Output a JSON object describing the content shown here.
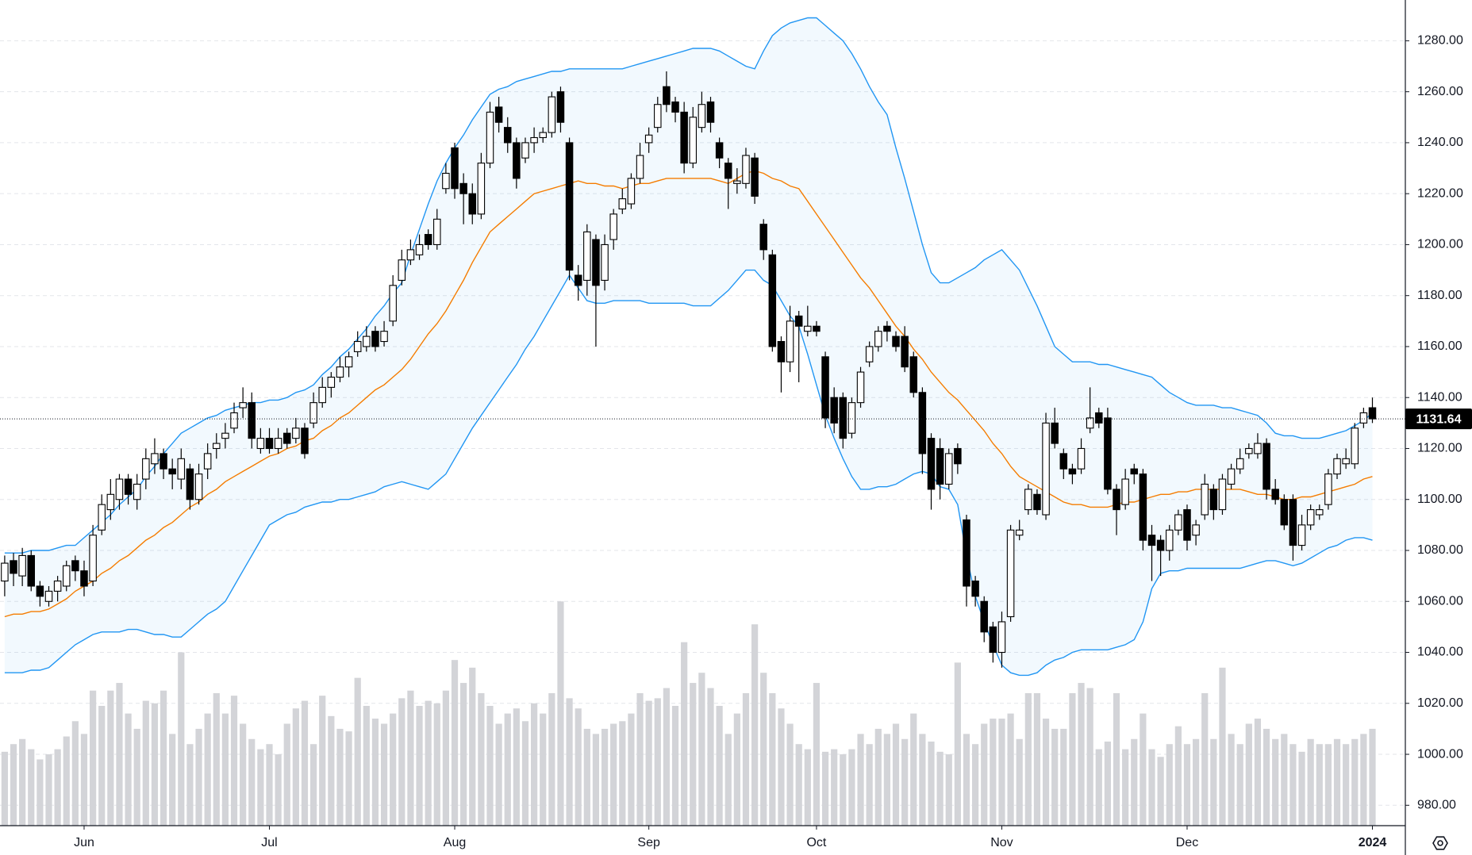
{
  "chart_data": {
    "type": "candlestick",
    "categories": [
      null,
      null,
      null,
      null,
      null,
      null,
      null,
      null,
      null,
      "Jun",
      null,
      null,
      null,
      null,
      null,
      null,
      null,
      null,
      null,
      null,
      null,
      null,
      null,
      null,
      null,
      null,
      null,
      null,
      null,
      null,
      "Jul",
      null,
      null,
      null,
      null,
      null,
      null,
      null,
      null,
      null,
      null,
      null,
      null,
      null,
      null,
      null,
      null,
      null,
      null,
      null,
      null,
      "Aug",
      null,
      null,
      null,
      null,
      null,
      null,
      null,
      null,
      null,
      null,
      null,
      null,
      null,
      null,
      null,
      null,
      null,
      null,
      null,
      null,
      null,
      "Sep",
      null,
      null,
      null,
      null,
      null,
      null,
      null,
      null,
      null,
      null,
      null,
      null,
      null,
      null,
      null,
      null,
      null,
      null,
      "Oct",
      null,
      null,
      null,
      null,
      null,
      null,
      null,
      null,
      null,
      null,
      null,
      null,
      null,
      null,
      null,
      null,
      null,
      null,
      null,
      null,
      "Nov",
      null,
      null,
      null,
      null,
      null,
      null,
      null,
      null,
      null,
      null,
      null,
      null,
      null,
      null,
      null,
      null,
      null,
      null,
      null,
      null,
      "Dec",
      null,
      null,
      null,
      null,
      null,
      null,
      null,
      null,
      null,
      null,
      null,
      null,
      null,
      null,
      null,
      null,
      null,
      null,
      null,
      null,
      "2024"
    ],
    "open": [
      1068,
      1076,
      1070,
      1078,
      1066,
      1060,
      1064,
      1066,
      1076,
      1072,
      1068,
      1088,
      1096,
      1100,
      1108,
      1100,
      1108,
      1114,
      1118,
      1112,
      1108,
      1112,
      1100,
      1112,
      1120,
      1124,
      1128,
      1136,
      1138,
      1120,
      1124,
      1120,
      1126,
      1124,
      1128,
      1130,
      1138,
      1144,
      1148,
      1152,
      1158,
      1160,
      1166,
      1162,
      1170,
      1186,
      1194,
      1196,
      1204,
      1200,
      1222,
      1238,
      1224,
      1220,
      1212,
      1232,
      1254,
      1246,
      1240,
      1234,
      1240,
      1242,
      1244,
      1260,
      1240,
      1188,
      1186,
      1202,
      1186,
      1202,
      1214,
      1216,
      1226,
      1240,
      1246,
      1262,
      1256,
      1252,
      1232,
      1246,
      1256,
      1240,
      1232,
      1224,
      1224,
      1234,
      1208,
      1196,
      1162,
      1154,
      1172,
      1166,
      1168,
      1156,
      1140,
      1140,
      1126,
      1138,
      1154,
      1160,
      1168,
      1164,
      1164,
      1156,
      1142,
      1124,
      1120,
      1106,
      1120,
      1092,
      1068,
      1060,
      1050,
      1040,
      1054,
      1086,
      1096,
      1102,
      1094,
      1130,
      1118,
      1112,
      1112,
      1128,
      1134,
      1132,
      1104,
      1098,
      1112,
      1110,
      1086,
      1084,
      1080,
      1088,
      1096,
      1086,
      1094,
      1104,
      1096,
      1106,
      1112,
      1118,
      1118,
      1122,
      1104,
      1100,
      1100,
      1082,
      1090,
      1094,
      1098,
      1110,
      1114,
      1114,
      1130,
      1136
    ],
    "high": [
      1078,
      1079,
      1081,
      1080,
      1068,
      1066,
      1070,
      1076,
      1078,
      1076,
      1090,
      1102,
      1108,
      1110,
      1110,
      1110,
      1120,
      1124,
      1120,
      1116,
      1120,
      1114,
      1114,
      1122,
      1126,
      1130,
      1138,
      1144,
      1142,
      1128,
      1128,
      1128,
      1128,
      1132,
      1130,
      1142,
      1148,
      1150,
      1156,
      1158,
      1166,
      1168,
      1168,
      1170,
      1188,
      1198,
      1202,
      1204,
      1206,
      1214,
      1232,
      1240,
      1228,
      1224,
      1236,
      1256,
      1258,
      1250,
      1242,
      1242,
      1246,
      1246,
      1260,
      1262,
      1242,
      1192,
      1208,
      1204,
      1204,
      1214,
      1222,
      1228,
      1240,
      1246,
      1258,
      1268,
      1258,
      1256,
      1254,
      1260,
      1258,
      1242,
      1234,
      1230,
      1238,
      1236,
      1210,
      1198,
      1164,
      1176,
      1174,
      1176,
      1170,
      1158,
      1144,
      1142,
      1140,
      1152,
      1162,
      1168,
      1170,
      1166,
      1168,
      1158,
      1144,
      1126,
      1124,
      1120,
      1122,
      1094,
      1070,
      1062,
      1052,
      1056,
      1090,
      1092,
      1106,
      1104,
      1134,
      1136,
      1120,
      1114,
      1124,
      1144,
      1136,
      1136,
      1106,
      1112,
      1114,
      1112,
      1090,
      1086,
      1090,
      1096,
      1098,
      1092,
      1110,
      1106,
      1110,
      1114,
      1120,
      1122,
      1126,
      1124,
      1108,
      1102,
      1102,
      1094,
      1098,
      1098,
      1112,
      1118,
      1120,
      1130,
      1136,
      1140
    ],
    "low": [
      1062,
      1066,
      1066,
      1064,
      1058,
      1058,
      1060,
      1064,
      1068,
      1062,
      1066,
      1086,
      1092,
      1096,
      1098,
      1096,
      1104,
      1110,
      1108,
      1104,
      1104,
      1096,
      1098,
      1108,
      1116,
      1120,
      1126,
      1132,
      1120,
      1118,
      1118,
      1118,
      1120,
      1122,
      1116,
      1128,
      1136,
      1140,
      1146,
      1148,
      1156,
      1158,
      1158,
      1160,
      1168,
      1184,
      1192,
      1194,
      1198,
      1198,
      1220,
      1218,
      1208,
      1208,
      1210,
      1230,
      1244,
      1236,
      1222,
      1232,
      1236,
      1240,
      1242,
      1244,
      1186,
      1178,
      1180,
      1160,
      1182,
      1198,
      1212,
      1214,
      1224,
      1236,
      1244,
      1252,
      1248,
      1228,
      1230,
      1244,
      1244,
      1230,
      1214,
      1220,
      1222,
      1216,
      1194,
      1158,
      1142,
      1150,
      1146,
      1164,
      1164,
      1128,
      1126,
      1120,
      1124,
      1136,
      1152,
      1158,
      1162,
      1158,
      1150,
      1140,
      1110,
      1096,
      1100,
      1104,
      1110,
      1058,
      1058,
      1044,
      1036,
      1034,
      1052,
      1084,
      1094,
      1094,
      1092,
      1120,
      1108,
      1106,
      1110,
      1126,
      1128,
      1102,
      1086,
      1096,
      1106,
      1080,
      1068,
      1070,
      1076,
      1086,
      1080,
      1082,
      1092,
      1092,
      1094,
      1104,
      1110,
      1116,
      1116,
      1100,
      1098,
      1088,
      1076,
      1080,
      1088,
      1092,
      1096,
      1108,
      1112,
      1112,
      1128,
      1130
    ],
    "close": [
      1075,
      1071,
      1078,
      1066,
      1062,
      1064,
      1068,
      1074,
      1072,
      1066,
      1086,
      1098,
      1102,
      1108,
      1102,
      1106,
      1116,
      1118,
      1112,
      1110,
      1116,
      1100,
      1110,
      1118,
      1122,
      1126,
      1134,
      1138,
      1124,
      1124,
      1120,
      1124,
      1122,
      1128,
      1118,
      1138,
      1144,
      1148,
      1152,
      1156,
      1162,
      1164,
      1160,
      1166,
      1184,
      1194,
      1198,
      1200,
      1200,
      1210,
      1228,
      1222,
      1220,
      1212,
      1232,
      1252,
      1248,
      1240,
      1226,
      1240,
      1242,
      1244,
      1258,
      1248,
      1190,
      1184,
      1205,
      1184,
      1200,
      1212,
      1218,
      1226,
      1235,
      1243,
      1255,
      1255,
      1252,
      1232,
      1250,
      1255,
      1248,
      1234,
      1226,
      1225,
      1235,
      1219,
      1198,
      1160,
      1154,
      1170,
      1168,
      1168,
      1166,
      1132,
      1130,
      1124,
      1138,
      1150,
      1160,
      1166,
      1166,
      1160,
      1152,
      1142,
      1118,
      1104,
      1106,
      1118,
      1114,
      1066,
      1062,
      1048,
      1040,
      1052,
      1088,
      1088,
      1104,
      1096,
      1130,
      1122,
      1112,
      1110,
      1120,
      1132,
      1130,
      1104,
      1096,
      1108,
      1110,
      1084,
      1082,
      1080,
      1088,
      1094,
      1084,
      1090,
      1106,
      1096,
      1108,
      1112,
      1116,
      1120,
      1122,
      1104,
      1100,
      1090,
      1082,
      1090,
      1096,
      1096,
      1110,
      1116,
      1116,
      1128,
      1134,
      1131.64
    ],
    "volume": [
      1001,
      1004,
      1006,
      1002,
      998,
      1000,
      1002,
      1007,
      1013,
      1008,
      1025,
      1019,
      1025,
      1028,
      1016,
      1010,
      1021,
      1020,
      1025,
      1008,
      1040,
      1004,
      1010,
      1016,
      1024,
      1016,
      1023,
      1012,
      1006,
      1002,
      1004,
      1000,
      1012,
      1018,
      1021,
      1004,
      1023,
      1015,
      1010,
      1009,
      1030,
      1019,
      1014,
      1012,
      1016,
      1022,
      1025,
      1019,
      1021,
      1020,
      1025,
      1037,
      1028,
      1034,
      1024,
      1019,
      1012,
      1016,
      1018,
      1013,
      1020,
      1016,
      1024,
      1060,
      1022,
      1018,
      1010,
      1008,
      1010,
      1012,
      1013,
      1016,
      1024,
      1021,
      1022,
      1026,
      1019,
      1044,
      1028,
      1032,
      1026,
      1019,
      1008,
      1016,
      1024,
      1051,
      1032,
      1024,
      1018,
      1012,
      1004,
      1002,
      1028,
      1001,
      1002,
      1000,
      1002,
      1008,
      1004,
      1010,
      1008,
      1012,
      1006,
      1016,
      1008,
      1005,
      1001,
      1000,
      1036,
      1008,
      1004,
      1012,
      1014,
      1014,
      1016,
      1006,
      1024,
      1024,
      1014,
      1010,
      1010,
      1024,
      1028,
      1026,
      1002,
      1005,
      1024,
      1002,
      1006,
      1016,
      1002,
      999,
      1004,
      1011,
      1004,
      1006,
      1024,
      1006,
      1034,
      1008,
      1004,
      1012,
      1014,
      1010,
      1006,
      1008,
      1004,
      1001,
      1006,
      1004,
      1004,
      1006,
      1004,
      1006,
      1008,
      1010
    ],
    "upper_band": [
      1079,
      1079,
      1079,
      1080,
      1080,
      1080,
      1081,
      1082,
      1082,
      1085,
      1088,
      1091,
      1094,
      1098,
      1101,
      1104,
      1109,
      1113,
      1118,
      1122,
      1126,
      1128,
      1130,
      1132,
      1133,
      1135,
      1136,
      1137,
      1138,
      1138,
      1139,
      1139,
      1140,
      1142,
      1143,
      1145,
      1149,
      1152,
      1156,
      1159,
      1163,
      1167,
      1172,
      1176,
      1181,
      1185,
      1196,
      1206,
      1216,
      1225,
      1232,
      1238,
      1243,
      1249,
      1254,
      1259,
      1261,
      1262,
      1264,
      1265,
      1266,
      1267,
      1268,
      1268,
      1269,
      1269,
      1269,
      1269,
      1269,
      1269,
      1269,
      1270,
      1271,
      1272,
      1273,
      1274,
      1275,
      1276,
      1277,
      1277,
      1277,
      1276,
      1274,
      1272,
      1270,
      1269,
      1276,
      1282,
      1285,
      1287,
      1288,
      1289,
      1289,
      1286,
      1283,
      1280,
      1275,
      1269,
      1262,
      1256,
      1251,
      1238,
      1226,
      1213,
      1200,
      1189,
      1185,
      1185,
      1187,
      1189,
      1191,
      1194,
      1196,
      1198,
      1194,
      1190,
      1183,
      1176,
      1168,
      1160,
      1157,
      1154,
      1154,
      1154,
      1153,
      1153,
      1152,
      1151,
      1150,
      1149,
      1148,
      1145,
      1142,
      1140,
      1138,
      1137,
      1137,
      1137,
      1136,
      1136,
      1135,
      1134,
      1133,
      1130,
      1126,
      1125,
      1125,
      1124,
      1124,
      1124,
      1125,
      1126,
      1127,
      1129,
      1131,
      1134
    ],
    "middle_band": [
      1054,
      1055,
      1055,
      1056,
      1056,
      1057,
      1059,
      1061,
      1064,
      1066,
      1068,
      1071,
      1073,
      1076,
      1078,
      1081,
      1084,
      1086,
      1089,
      1091,
      1094,
      1097,
      1099,
      1102,
      1104,
      1107,
      1109,
      1111,
      1113,
      1115,
      1117,
      1118,
      1120,
      1121,
      1123,
      1124,
      1127,
      1129,
      1132,
      1134,
      1137,
      1140,
      1143,
      1145,
      1148,
      1151,
      1155,
      1160,
      1165,
      1169,
      1174,
      1180,
      1186,
      1193,
      1199,
      1205,
      1208,
      1211,
      1214,
      1217,
      1220,
      1221,
      1222,
      1223,
      1224,
      1225,
      1224,
      1224,
      1223,
      1223,
      1222,
      1223,
      1224,
      1224,
      1225,
      1226,
      1226,
      1226,
      1226,
      1226,
      1226,
      1225,
      1224,
      1226,
      1228,
      1229,
      1228,
      1226,
      1225,
      1223,
      1222,
      1217,
      1212,
      1207,
      1202,
      1197,
      1192,
      1187,
      1183,
      1178,
      1173,
      1168,
      1164,
      1159,
      1155,
      1150,
      1146,
      1142,
      1139,
      1135,
      1131,
      1127,
      1122,
      1118,
      1113,
      1109,
      1107,
      1105,
      1103,
      1101,
      1099,
      1098,
      1098,
      1097,
      1097,
      1097,
      1098,
      1099,
      1099,
      1100,
      1101,
      1102,
      1102,
      1103,
      1103,
      1104,
      1104,
      1104,
      1104,
      1104,
      1104,
      1103,
      1102,
      1102,
      1101,
      1100,
      1100,
      1101,
      1101,
      1102,
      1103,
      1104,
      1105,
      1106,
      1108,
      1109
    ],
    "lower_band": [
      1032,
      1032,
      1032,
      1033,
      1033,
      1034,
      1037,
      1040,
      1043,
      1045,
      1047,
      1048,
      1048,
      1048,
      1049,
      1049,
      1048,
      1047,
      1047,
      1046,
      1046,
      1049,
      1052,
      1055,
      1057,
      1060,
      1066,
      1072,
      1078,
      1084,
      1090,
      1092,
      1094,
      1095,
      1097,
      1098,
      1099,
      1099,
      1100,
      1100,
      1101,
      1102,
      1103,
      1105,
      1106,
      1107,
      1106,
      1105,
      1104,
      1107,
      1110,
      1116,
      1122,
      1128,
      1133,
      1138,
      1143,
      1148,
      1153,
      1159,
      1164,
      1170,
      1176,
      1182,
      1188,
      1183,
      1178,
      1177,
      1177,
      1178,
      1178,
      1178,
      1178,
      1177,
      1177,
      1177,
      1177,
      1177,
      1176,
      1176,
      1176,
      1179,
      1182,
      1186,
      1190,
      1190,
      1186,
      1184,
      1178,
      1172,
      1168,
      1157,
      1145,
      1133,
      1124,
      1116,
      1109,
      1104,
      1104,
      1105,
      1105,
      1106,
      1108,
      1110,
      1111,
      1110,
      1105,
      1104,
      1098,
      1078,
      1062,
      1052,
      1043,
      1035,
      1032,
      1031,
      1031,
      1032,
      1035,
      1037,
      1038,
      1040,
      1041,
      1041,
      1041,
      1041,
      1042,
      1043,
      1045,
      1052,
      1065,
      1071,
      1072,
      1072,
      1073,
      1073,
      1073,
      1073,
      1073,
      1073,
      1073,
      1074,
      1075,
      1076,
      1076,
      1075,
      1074,
      1075,
      1077,
      1079,
      1081,
      1082,
      1084,
      1085,
      1085,
      1084
    ],
    "up_color": "#ffffff",
    "down_color": "#000000",
    "band_color": "#2196f3",
    "middle_color": "#f57c00",
    "volume_color": "#d3d4d8",
    "last_price": 1131.64,
    "ylim": [
      972,
      1296
    ],
    "yticks": [
      {
        "value": 980,
        "label": "980.00"
      },
      {
        "value": 1000,
        "label": "1000.00"
      },
      {
        "value": 1020,
        "label": "1020.00"
      },
      {
        "value": 1040,
        "label": "1040.00"
      },
      {
        "value": 1060,
        "label": "1060.00"
      },
      {
        "value": 1080,
        "label": "1080.00"
      },
      {
        "value": 1100,
        "label": "1100.00"
      },
      {
        "value": 1120,
        "label": "1120.00"
      },
      {
        "value": 1140,
        "label": "1140.00"
      },
      {
        "value": 1160,
        "label": "1160.00"
      },
      {
        "value": 1180,
        "label": "1180.00"
      },
      {
        "value": 1200,
        "label": "1200.00"
      },
      {
        "value": 1220,
        "label": "1220.00"
      },
      {
        "value": 1240,
        "label": "1240.00"
      },
      {
        "value": 1260,
        "label": "1260.00"
      },
      {
        "value": 1280,
        "label": "1280.00"
      }
    ],
    "grid": true
  }
}
